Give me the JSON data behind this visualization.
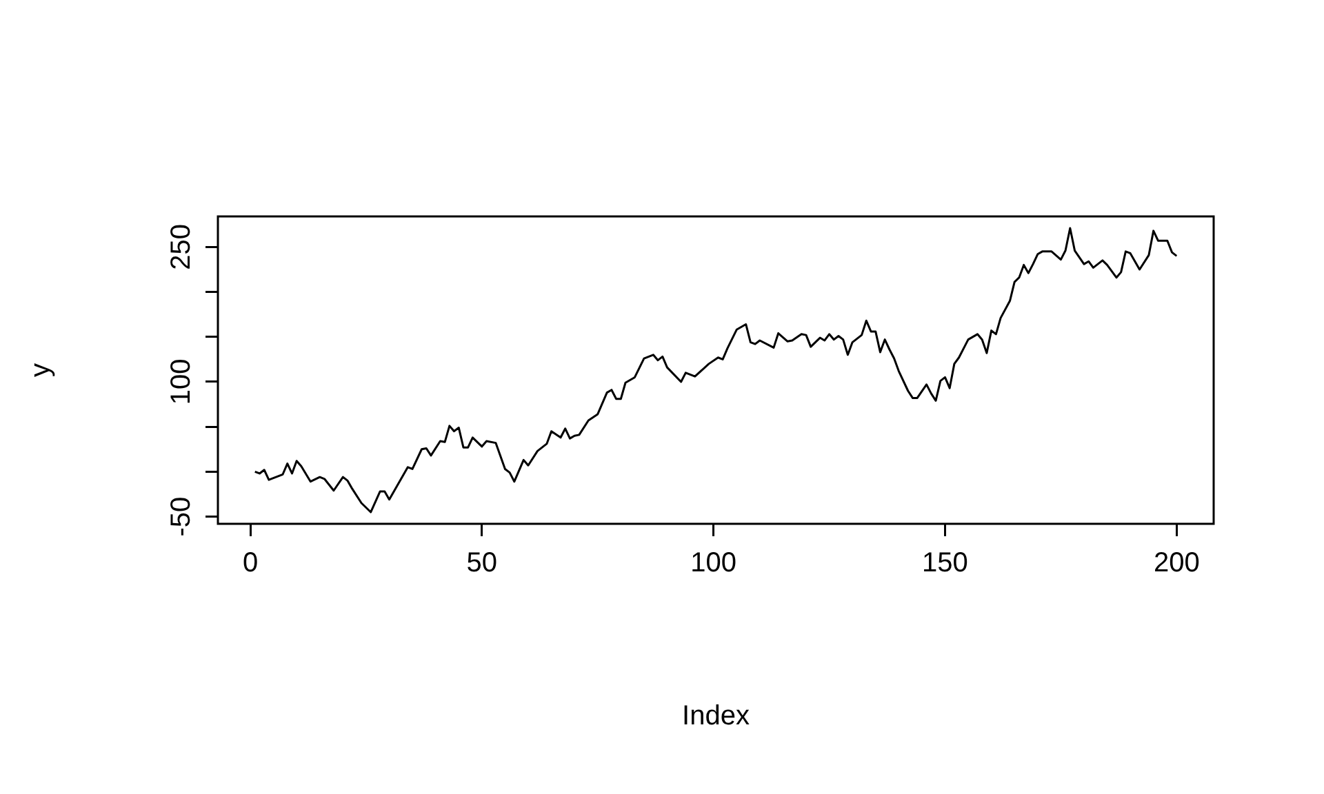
{
  "chart_data": {
    "type": "line",
    "xlabel": "Index",
    "ylabel": "y",
    "x": [
      1,
      2,
      3,
      4,
      7,
      8,
      9,
      10,
      11,
      13,
      15,
      16,
      18,
      20,
      21,
      22,
      24,
      26,
      28,
      29,
      30,
      34,
      35,
      37,
      38,
      39,
      41,
      42,
      43,
      44,
      45,
      46,
      47,
      48,
      50,
      51,
      53,
      55,
      56,
      57,
      59,
      60,
      62,
      64,
      65,
      67,
      68,
      69,
      70,
      71,
      73,
      75,
      77,
      78,
      79,
      80,
      81,
      83,
      85,
      87,
      88,
      89,
      90,
      93,
      94,
      96,
      99,
      101,
      102,
      103,
      105,
      107,
      108,
      109,
      110,
      113,
      114,
      116,
      117,
      119,
      120,
      121,
      123,
      124,
      125,
      126,
      127,
      128,
      129,
      130,
      132,
      133,
      134,
      135,
      136,
      137,
      138,
      139,
      140,
      142,
      143,
      144,
      146,
      147,
      148,
      149,
      150,
      151,
      152,
      153,
      155,
      157,
      158,
      159,
      160,
      161,
      162,
      164,
      165,
      166,
      167,
      168,
      169,
      170,
      171,
      173,
      175,
      176,
      177,
      178,
      180,
      181,
      182,
      184,
      185,
      187,
      188,
      189,
      190,
      192,
      194,
      195,
      196,
      198,
      199,
      200
    ],
    "series": [
      {
        "color": "#000000",
        "values": [
          0,
          -2,
          2,
          -9,
          -3,
          9,
          -2,
          12,
          6,
          -11,
          -6,
          -8,
          -21,
          -6,
          -10,
          -19,
          -35,
          -45,
          -22,
          -22,
          -31,
          5,
          3,
          25,
          26,
          18,
          34,
          33,
          51,
          45,
          49,
          27,
          27,
          38,
          28,
          34,
          32,
          3,
          -1,
          -11,
          13,
          7,
          23,
          31,
          45,
          38,
          48,
          37,
          40,
          41,
          57,
          64,
          88,
          91,
          81,
          81,
          99,
          105,
          126,
          130,
          124,
          128,
          116,
          100,
          110,
          106,
          120,
          127,
          125,
          137,
          158,
          164,
          144,
          142,
          146,
          138,
          154,
          145,
          146,
          153,
          152,
          139,
          149,
          146,
          153,
          147,
          151,
          147,
          130,
          144,
          152,
          168,
          156,
          156,
          133,
          147,
          136,
          126,
          112,
          90,
          82,
          82,
          97,
          87,
          79,
          101,
          105,
          93,
          120,
          127,
          147,
          153,
          147,
          132,
          157,
          153,
          171,
          190,
          211,
          216,
          230,
          221,
          231,
          242,
          245,
          245,
          236,
          246,
          271,
          246,
          231,
          234,
          227,
          235,
          230,
          216,
          222,
          245,
          243,
          225,
          241,
          268,
          257,
          257,
          244,
          240
        ]
      }
    ],
    "xlim": [
      -7,
      208
    ],
    "xticks": [
      0,
      50,
      100,
      150,
      200
    ],
    "ylim": [
      -58,
      284
    ],
    "yticks": [
      -50,
      {
        "value": 0,
        "label": null
      },
      {
        "value": 50,
        "label": null
      },
      100,
      {
        "value": 150,
        "label": null
      },
      {
        "value": 200,
        "label": null
      },
      250
    ],
    "grid": false,
    "legend": false,
    "marker": "none",
    "line_style": "solid"
  }
}
